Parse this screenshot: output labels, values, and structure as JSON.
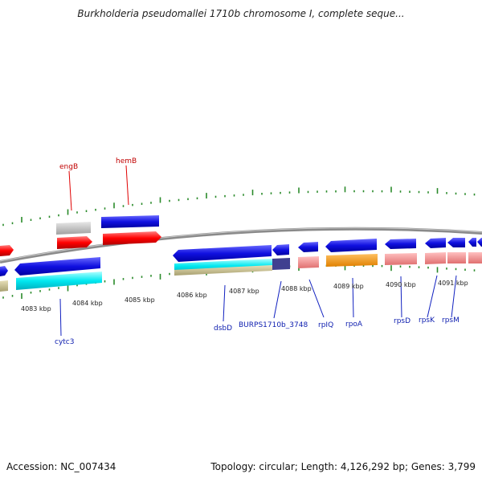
{
  "header": {
    "title": "Burkholderia pseudomallei 1710b chromosome I, complete seque..."
  },
  "footer": {
    "accession": "Accession: NC_007434",
    "topology": "Topology: circular; Length: 4,126,292 bp; Genes: 3,799"
  },
  "scale_labels": [
    "4083 kbp",
    "4084 kbp",
    "4085 kbp",
    "4086 kbp",
    "4087 kbp",
    "4088 kbp",
    "4089 kbp",
    "4090 kbp",
    "4091 kbp"
  ],
  "gene_labels": {
    "top": [
      "engB",
      "hemB"
    ],
    "bottom": [
      "cytc3",
      "dsbD",
      "BURPS1710b_3748",
      "rpIQ",
      "rpoA",
      "rpsD",
      "rpsK",
      "rpsM"
    ]
  },
  "colors": {
    "backbone": "#888888",
    "tick_green": "#2a8a2a",
    "gene_blue": "#1010e0",
    "gene_red": "#ff0000",
    "gene_cyan": "#00e8f0",
    "gene_gray": "#b8b8b8",
    "gene_orange": "#ff9900",
    "gene_pink": "#f08080",
    "gene_olive": "#c8c090",
    "gene_darkblue": "#404090",
    "label_red": "#c00000",
    "label_blue": "#1020b0"
  }
}
